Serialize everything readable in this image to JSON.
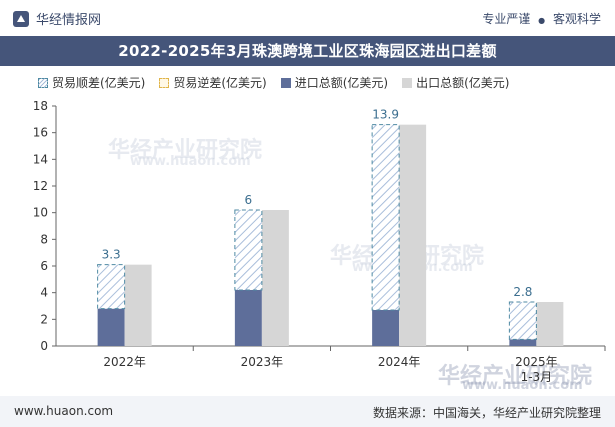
{
  "header": {
    "brand": "华经情报网",
    "motto_left": "专业严谨",
    "motto_sep": "●",
    "motto_right": "客观科学"
  },
  "footer": {
    "site": "www.huaon.com",
    "source": "数据来源：中国海关，华经产业研究院整理"
  },
  "watermark": {
    "text": "华经产业研究院",
    "url": "www.huaon.com"
  },
  "colors": {
    "title_bg": "#45557a",
    "import": "#5e6e9a",
    "export": "#d6d6d6",
    "trade_hatch": "#a9bedb",
    "trade_border": "#4f8aa3"
  },
  "chart_data": {
    "type": "bar",
    "title": "2022-2025年3月珠澳跨境工业区珠海园区进出口差额",
    "categories": [
      "2022年",
      "2023年",
      "2024年",
      "2025年\n1-3月"
    ],
    "series": [
      {
        "name": "贸易顺差(亿美元)",
        "values": [
          3.3,
          6,
          13.9,
          2.8
        ]
      },
      {
        "name": "贸易逆差(亿美元)",
        "values": [
          0,
          0,
          0,
          0
        ]
      },
      {
        "name": "进口总额(亿美元)",
        "values": [
          2.8,
          4.2,
          2.7,
          0.5
        ]
      },
      {
        "name": "出口总额(亿美元)",
        "values": [
          6.1,
          10.2,
          16.6,
          3.3
        ]
      }
    ],
    "data_labels": [
      "3.3",
      "6",
      "13.9",
      "2.8"
    ],
    "y_ticks": [
      0,
      2,
      4,
      6,
      8,
      10,
      12,
      14,
      16,
      18
    ],
    "ylim": [
      0,
      18
    ],
    "xlabel": "",
    "ylabel": ""
  }
}
